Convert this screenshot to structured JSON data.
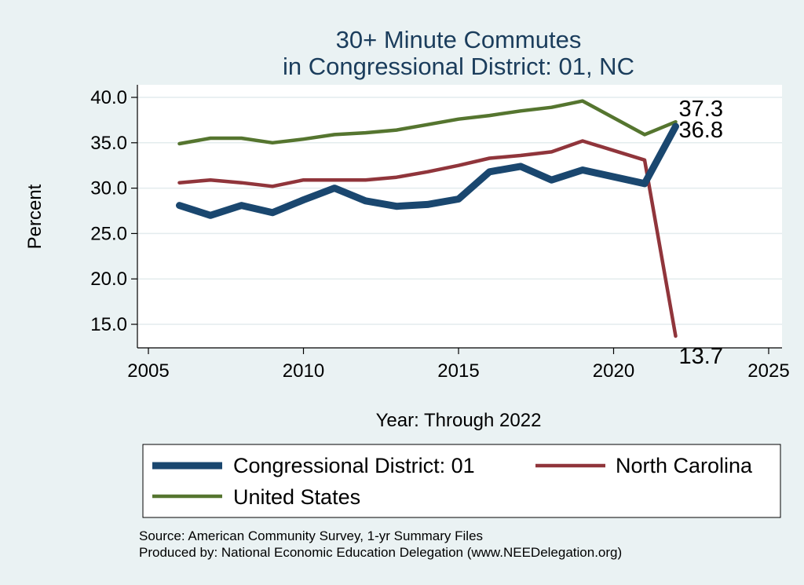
{
  "colors": {
    "background": "#eaf2f3",
    "plot_background": "#ffffff",
    "grid": "#e3ecee",
    "title": "#1b3d5c",
    "district": "#1a476f",
    "north_carolina": "#90353b",
    "united_states": "#55752f"
  },
  "chart_data": {
    "type": "line",
    "title": [
      "30+ Minute Commutes",
      "in Congressional District:  01, NC"
    ],
    "xlabel": "Year: Through 2022",
    "ylabel": "Percent",
    "xlim": [
      2005,
      2025
    ],
    "ylim": [
      13.0,
      41.5
    ],
    "xticks": [
      2005,
      2010,
      2015,
      2020,
      2025
    ],
    "xtick_labels": [
      "2005",
      "2010",
      "2015",
      "2020",
      "2025"
    ],
    "yticks": [
      15,
      20,
      25,
      30,
      35,
      40
    ],
    "ytick_labels": [
      "15.0",
      "20.0",
      "25.0",
      "30.0",
      "35.0",
      "40.0"
    ],
    "grid": true,
    "x": [
      2006,
      2007,
      2008,
      2009,
      2010,
      2011,
      2012,
      2013,
      2014,
      2015,
      2016,
      2017,
      2018,
      2019,
      2021,
      2022
    ],
    "series": [
      {
        "key": "district",
        "name": "Congressional District:  01",
        "values": [
          28.1,
          27.0,
          28.1,
          27.3,
          28.7,
          30.0,
          28.6,
          28.0,
          28.2,
          28.8,
          31.8,
          32.4,
          30.9,
          32.0,
          30.5,
          36.8
        ],
        "end_label": "36.8",
        "line_style": "thick"
      },
      {
        "key": "north_carolina",
        "name": "North Carolina",
        "values": [
          30.6,
          30.9,
          30.6,
          30.2,
          30.9,
          30.9,
          30.9,
          31.2,
          31.8,
          32.5,
          33.3,
          33.6,
          34.0,
          35.2,
          33.1,
          13.7
        ],
        "end_label": "13.7",
        "line_style": "medium"
      },
      {
        "key": "united_states",
        "name": "United States",
        "values": [
          34.9,
          35.5,
          35.5,
          35.0,
          35.4,
          35.9,
          36.1,
          36.4,
          37.0,
          37.6,
          38.0,
          38.5,
          38.9,
          39.6,
          35.9,
          37.3
        ],
        "end_label": "37.3",
        "line_style": "medium"
      }
    ]
  },
  "source_lines": [
    "Source: American Community Survey, 1-yr Summary Files",
    "Produced by: National Economic Education Delegation (www.NEEDelegation.org)"
  ]
}
